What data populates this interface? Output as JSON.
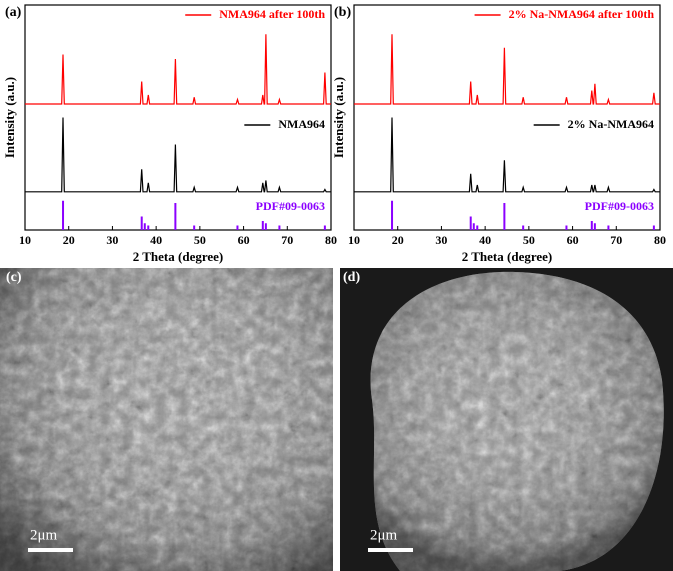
{
  "chart_data": [
    {
      "type": "line",
      "panel_label": "(a)",
      "xlabel": "2 Theta (degree)",
      "ylabel": "Intensity (a.u.)",
      "xlim": [
        10,
        80
      ],
      "xticks": [
        10,
        20,
        30,
        40,
        50,
        60,
        70,
        80
      ],
      "ylim": [
        0,
        100
      ],
      "series": [
        {
          "name": "NMA964 after 100th",
          "color": "#ff0000",
          "kind": "line",
          "x": [
            10,
            18.4,
            18.7,
            19.0,
            36.4,
            36.7,
            37.0,
            37.9,
            38.2,
            38.5,
            44.1,
            44.4,
            44.7,
            48.4,
            48.7,
            49.0,
            58.3,
            58.6,
            58.9,
            64.1,
            64.4,
            64.7,
            64.8,
            65.1,
            65.4,
            67.9,
            68.2,
            68.5,
            78.3,
            78.6,
            78.9,
            80
          ],
          "values": [
            56,
            56,
            78,
            56,
            56,
            66,
            56,
            56,
            60,
            56,
            56,
            76,
            56,
            56,
            59,
            56,
            56,
            58,
            56,
            56,
            60,
            56,
            56,
            87,
            56,
            56,
            58,
            56,
            56,
            70,
            56,
            56
          ]
        },
        {
          "name": "NMA964",
          "color": "#000000",
          "kind": "line",
          "x": [
            10,
            18.4,
            18.7,
            19.0,
            36.4,
            36.7,
            37.0,
            37.9,
            38.2,
            38.5,
            44.1,
            44.4,
            44.7,
            48.4,
            48.7,
            49.0,
            58.3,
            58.6,
            58.9,
            64.1,
            64.4,
            64.7,
            64.8,
            65.1,
            65.4,
            67.9,
            68.2,
            68.5,
            78.3,
            78.6,
            78.9,
            80
          ],
          "values": [
            17,
            17,
            50,
            17,
            17,
            27,
            17,
            17,
            21,
            17,
            17,
            38,
            17,
            17,
            19,
            17,
            17,
            19,
            17,
            17,
            21,
            17,
            17,
            22,
            17,
            17,
            19,
            17,
            17,
            18,
            17,
            17
          ]
        },
        {
          "name": "PDF#09-0063",
          "color": "#8b00ff",
          "kind": "stick",
          "x": [
            18.7,
            36.7,
            37.4,
            38.2,
            44.4,
            48.7,
            58.6,
            64.4,
            65.1,
            68.2,
            78.6
          ],
          "values": [
            13,
            6,
            3,
            2,
            12,
            2,
            2,
            4,
            3,
            2,
            2
          ]
        }
      ]
    },
    {
      "type": "line",
      "panel_label": "(b)",
      "xlabel": "2 Theta (degree)",
      "ylabel": "Intensity (a.u.)",
      "xlim": [
        10,
        80
      ],
      "xticks": [
        10,
        20,
        30,
        40,
        50,
        60,
        70,
        80
      ],
      "ylim": [
        0,
        100
      ],
      "series": [
        {
          "name": "2% Na-NMA964 after 100th",
          "color": "#ff0000",
          "kind": "line",
          "x": [
            10,
            18.4,
            18.7,
            19.0,
            36.4,
            36.7,
            37.0,
            37.9,
            38.2,
            38.5,
            44.1,
            44.4,
            44.7,
            48.4,
            48.7,
            49.0,
            58.3,
            58.6,
            58.9,
            64.1,
            64.4,
            64.7,
            64.8,
            65.1,
            65.4,
            67.9,
            68.2,
            68.5,
            78.3,
            78.6,
            78.9,
            80
          ],
          "values": [
            56,
            56,
            87,
            56,
            56,
            66,
            56,
            56,
            60,
            56,
            56,
            81,
            56,
            56,
            59,
            56,
            56,
            59,
            56,
            56,
            62,
            56,
            56,
            65,
            56,
            56,
            58,
            56,
            56,
            61,
            56,
            56
          ]
        },
        {
          "name": "2% Na-NMA964",
          "color": "#000000",
          "kind": "line",
          "x": [
            10,
            18.4,
            18.7,
            19.0,
            36.4,
            36.7,
            37.0,
            37.9,
            38.2,
            38.5,
            44.1,
            44.4,
            44.7,
            48.4,
            48.7,
            49.0,
            58.3,
            58.6,
            58.9,
            64.1,
            64.4,
            64.7,
            64.8,
            65.1,
            65.4,
            67.9,
            68.2,
            68.5,
            78.3,
            78.6,
            78.9,
            80
          ],
          "values": [
            17,
            17,
            50,
            17,
            17,
            25,
            17,
            17,
            20,
            17,
            17,
            31,
            17,
            17,
            19,
            17,
            17,
            19,
            17,
            17,
            20,
            17,
            17,
            20,
            17,
            17,
            19,
            17,
            17,
            18,
            17,
            17
          ]
        },
        {
          "name": "PDF#09-0063",
          "color": "#8b00ff",
          "kind": "stick",
          "x": [
            18.7,
            36.7,
            37.4,
            38.2,
            44.4,
            48.7,
            58.6,
            64.4,
            65.1,
            68.2,
            78.6
          ],
          "values": [
            13,
            6,
            3,
            2,
            12,
            2,
            2,
            4,
            3,
            2,
            2
          ]
        }
      ]
    }
  ],
  "images": [
    {
      "label": "(c)",
      "scale_bar": "2μm"
    },
    {
      "label": "(d)",
      "scale_bar": "2μm"
    }
  ]
}
